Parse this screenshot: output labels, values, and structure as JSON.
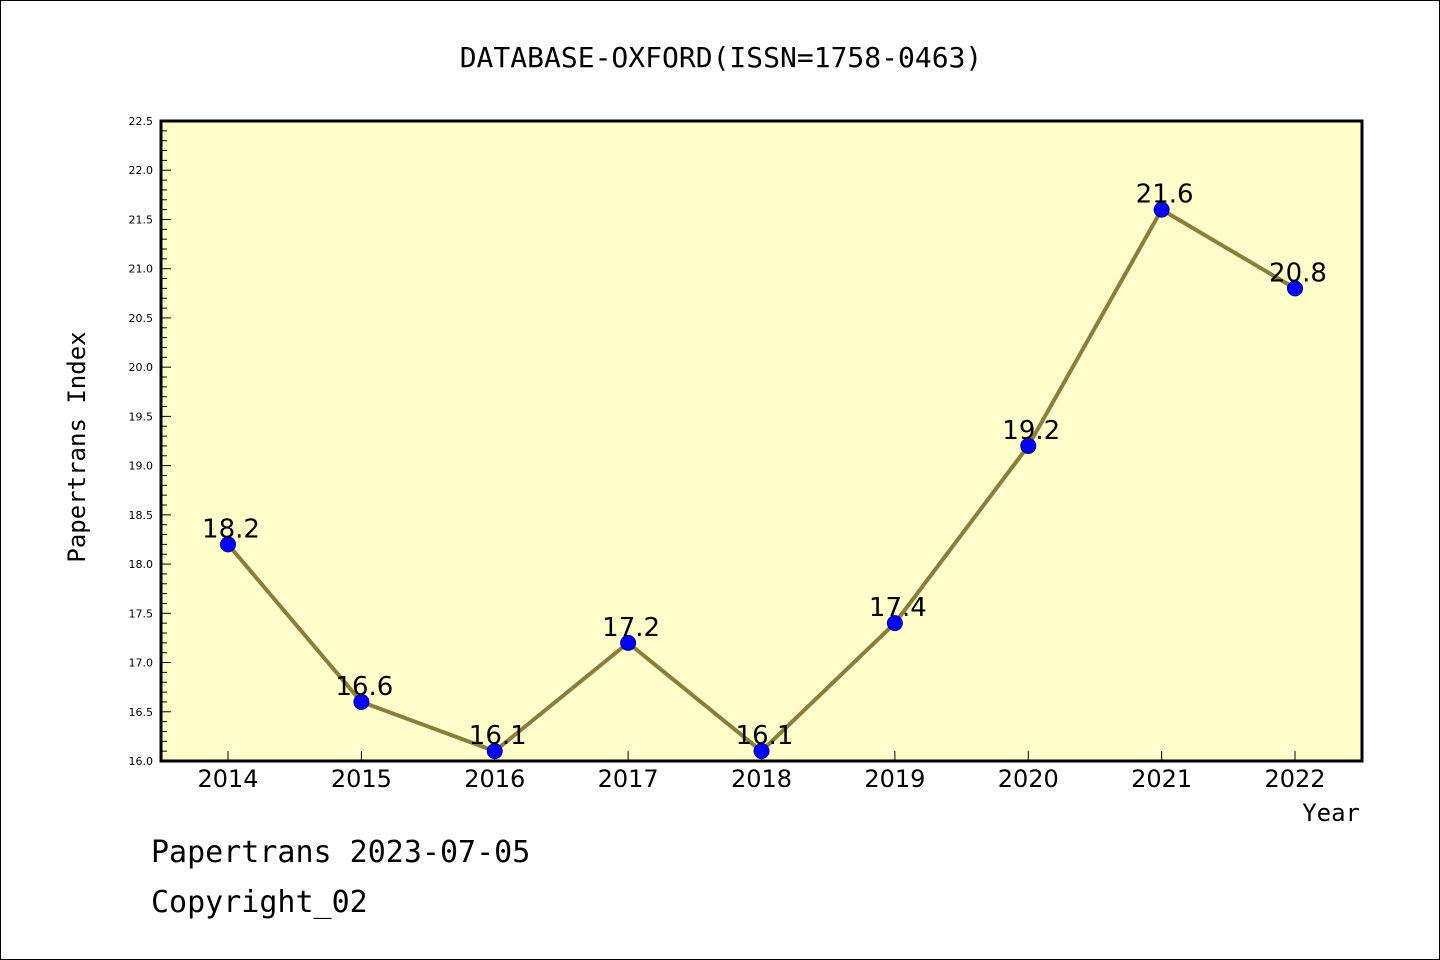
{
  "chart_data": {
    "type": "line",
    "title": "DATABASE-OXFORD(ISSN=1758-0463)",
    "xlabel": "Year",
    "ylabel": "Papertrans Index",
    "categories": [
      "2014",
      "2015",
      "2016",
      "2017",
      "2018",
      "2019",
      "2020",
      "2021",
      "2022"
    ],
    "series": [
      {
        "values": [
          18.2,
          16.6,
          16.1,
          17.2,
          16.1,
          17.4,
          19.2,
          21.6,
          20.8
        ],
        "labels": [
          "18.2",
          "16.6",
          "16.1",
          "17.2",
          "16.1",
          "17.4",
          "19.2",
          "21.6",
          "20.8"
        ]
      }
    ],
    "ylim": [
      16.0,
      22.5
    ],
    "yticks": [
      "16.0",
      "16.5",
      "17.0",
      "17.5",
      "18.0",
      "18.5",
      "19.0",
      "19.5",
      "20.0",
      "20.5",
      "21.0",
      "21.5",
      "22.0",
      "22.5"
    ],
    "grid": false,
    "colors": {
      "plot_background": "#ffffcc",
      "line": "#8b7d3a",
      "marker": "#0000ff"
    }
  },
  "footer": {
    "line1": "Papertrans 2023-07-05",
    "line2": "Copyright_02"
  }
}
